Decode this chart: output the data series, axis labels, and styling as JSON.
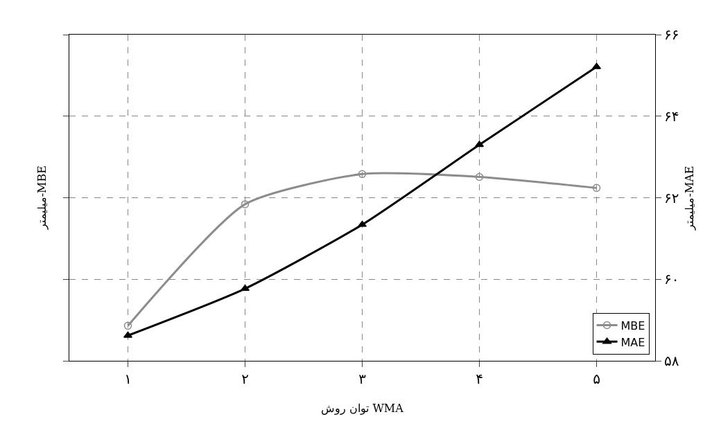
{
  "chart_data": {
    "type": "line",
    "xlabel": "توان روش WMA",
    "ylabel": "میلیمتر-MBE",
    "y2label": "میلیمتر-MAE",
    "categories": [
      "۱",
      "۲",
      "۳",
      "۴",
      "۵"
    ],
    "series": [
      {
        "name": "MBE",
        "color": "#8c8c8c",
        "marker": "circle",
        "values": [
          58.86,
          61.84,
          62.58,
          62.51,
          62.24
        ]
      },
      {
        "name": "MAE",
        "color": "#000000",
        "marker": "triangle",
        "values": [
          58.62,
          59.77,
          61.34,
          63.3,
          65.21
        ]
      }
    ],
    "ylim": [
      58,
      66
    ],
    "yticks": [
      {
        "value": 58,
        "label": "۵۸"
      },
      {
        "value": 60,
        "label": "۶۰"
      },
      {
        "value": 62,
        "label": "۶۲"
      },
      {
        "value": 64,
        "label": "۶۴"
      },
      {
        "value": 66,
        "label": "۶۶"
      }
    ],
    "grid": true,
    "line_style": "solid",
    "legend": "bottom right"
  }
}
